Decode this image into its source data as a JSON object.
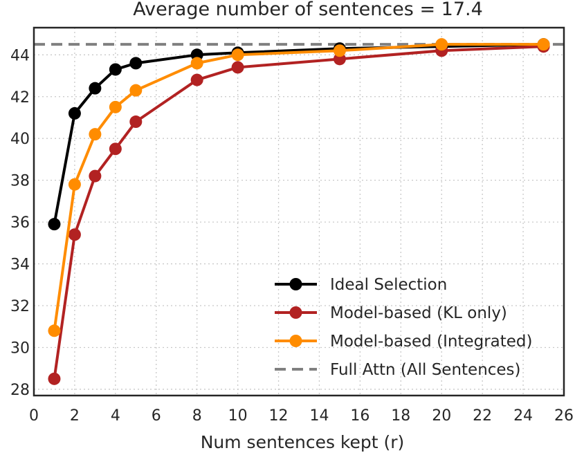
{
  "chart_data": {
    "type": "line",
    "title": "Average number of sentences = 17.4",
    "xlabel": "Num sentences kept (r)",
    "ylabel": "",
    "xlim": [
      0,
      26
    ],
    "ylim": [
      27.7,
      45.3
    ],
    "xticks": [
      0,
      2,
      4,
      6,
      8,
      10,
      12,
      14,
      16,
      18,
      20,
      22,
      24,
      26
    ],
    "yticks": [
      28,
      30,
      32,
      34,
      36,
      38,
      40,
      42,
      44
    ],
    "grid": true,
    "legend_position": "lower-right",
    "x": [
      1,
      2,
      3,
      4,
      5,
      8,
      10,
      15,
      20,
      25
    ],
    "series": [
      {
        "name": "Ideal Selection",
        "color": "#000000",
        "values": [
          35.9,
          41.2,
          42.4,
          43.3,
          43.6,
          44.0,
          44.1,
          44.3,
          44.4,
          44.5
        ]
      },
      {
        "name": "Model-based (KL only)",
        "color": "#b22222",
        "values": [
          28.5,
          35.4,
          38.2,
          39.5,
          40.8,
          42.8,
          43.4,
          43.8,
          44.2,
          44.4
        ]
      },
      {
        "name": "Model-based (Integrated)",
        "color": "#ff8c00",
        "values": [
          30.8,
          37.8,
          40.2,
          41.5,
          42.3,
          43.6,
          44.0,
          44.2,
          44.5,
          44.5
        ]
      }
    ],
    "reference_line": {
      "name": "Full Attn (All Sentences)",
      "color": "#808080",
      "value": 44.5,
      "style": "dashed"
    }
  }
}
